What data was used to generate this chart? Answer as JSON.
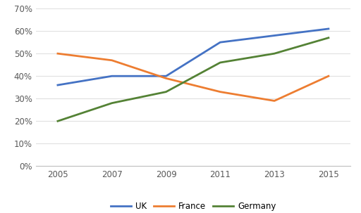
{
  "years": [
    2005,
    2007,
    2009,
    2011,
    2013,
    2015
  ],
  "uk": [
    0.36,
    0.4,
    0.4,
    0.55,
    0.58,
    0.61
  ],
  "france": [
    0.5,
    0.47,
    0.39,
    0.33,
    0.29,
    0.4
  ],
  "germany": [
    0.2,
    0.28,
    0.33,
    0.46,
    0.5,
    0.57
  ],
  "uk_color": "#4472C4",
  "france_color": "#ED7D31",
  "germany_color": "#548235",
  "ylim": [
    0.0,
    0.7
  ],
  "yticks": [
    0.0,
    0.1,
    0.2,
    0.3,
    0.4,
    0.5,
    0.6,
    0.7
  ],
  "xticks": [
    2005,
    2007,
    2009,
    2011,
    2013,
    2015
  ],
  "legend_labels": [
    "UK",
    "France",
    "Germany"
  ],
  "bg_color": "#FFFFFF",
  "line_width": 2.0,
  "grid_color": "#E0E0E0",
  "tick_label_color": "#595959",
  "tick_label_size": 8.5
}
